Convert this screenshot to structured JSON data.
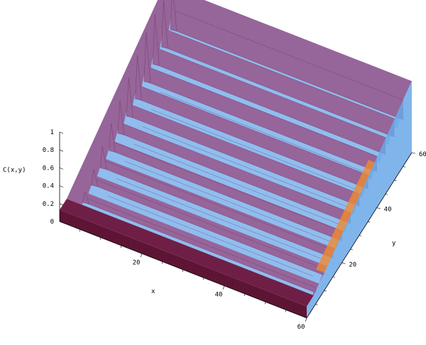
{
  "chart_data": {
    "type": "surface3d",
    "title": "",
    "xlabel": "x",
    "ylabel": "y",
    "zlabel": "C(x,y)",
    "xlim": [
      0,
      60
    ],
    "ylim": [
      0,
      60
    ],
    "zlim": [
      0,
      1
    ],
    "x_ticks": [
      "20",
      "40",
      "60"
    ],
    "y_ticks": [
      "20",
      "40",
      "60"
    ],
    "z_ticks": [
      "0",
      "0.2",
      "0.4",
      "0.6",
      "0.8",
      "1"
    ],
    "surface": {
      "plateau_level": 0.8,
      "near_edge_level": 0.13,
      "ridge_y_values": [
        5,
        10,
        15,
        20,
        25,
        30,
        35,
        40,
        45,
        50,
        55
      ],
      "spike_peaks": [
        0.25,
        0.35,
        0.45,
        0.55,
        0.65,
        0.75,
        0.85,
        0.95,
        1.0,
        1.0,
        1.0
      ]
    },
    "colors": {
      "surface_top": "#96659a",
      "surface_dark": "#6f1f46",
      "surface_base": "#5e1535",
      "trough": "#8fc6f7",
      "trough_dark": "#6aa8e8",
      "highlight_orange": "#f08a30",
      "grid_line": "#4a0f2e"
    },
    "grid": false,
    "box": true
  }
}
